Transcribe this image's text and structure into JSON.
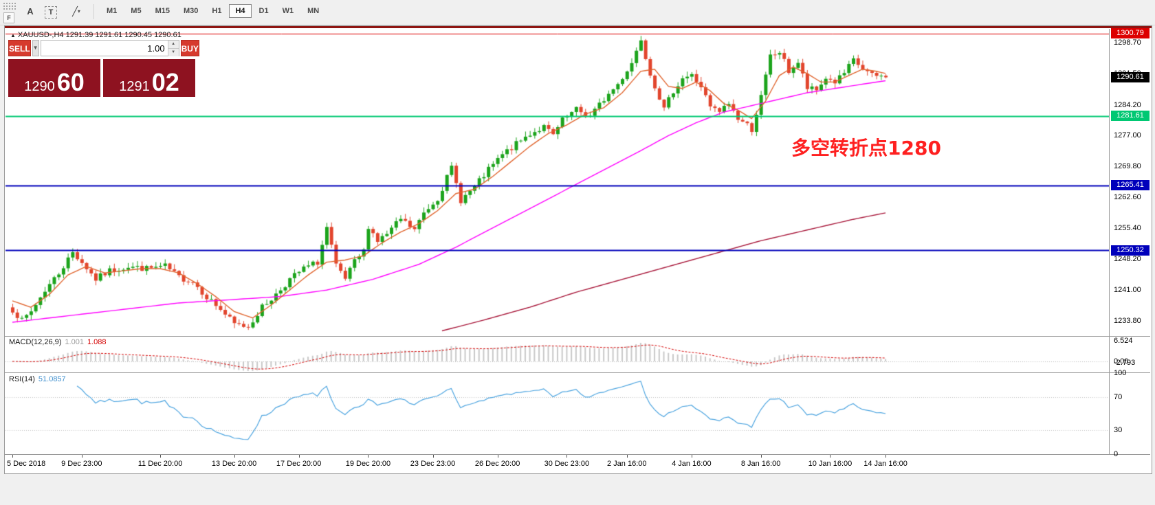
{
  "toolbar": {
    "f_label": "F",
    "icon_a": "A",
    "icon_t": "T",
    "icon_line": "╱",
    "icon_caret": "▾",
    "timeframes": [
      "M1",
      "M5",
      "M15",
      "M30",
      "H1",
      "H4",
      "D1",
      "W1",
      "MN"
    ],
    "active_timeframe": "H4"
  },
  "symbol_bar": {
    "arrow": "▲",
    "symbol": "XAUUSD-,H4",
    "ohlc": "1291.39 1291.61 1290.45 1290.61"
  },
  "trade_panel": {
    "sell_label": "SELL",
    "buy_label": "BUY",
    "volume": "1.00",
    "dropdown_icon": "▼",
    "spin_up": "▲",
    "spin_down": "▼",
    "sell_price_big": {
      "base": "1290",
      "pips": "60"
    },
    "buy_price_big": {
      "base": "1291",
      "pips": "02"
    }
  },
  "annotation": {
    "text": "多空转折点1280",
    "color": "#fe2020"
  },
  "indicators": {
    "macd": {
      "label": "MACD(12,26,9)",
      "value1": "1.001",
      "value2": "1.088",
      "axis": [
        "6.524",
        "0.00",
        "-2.793"
      ]
    },
    "rsi": {
      "label": "RSI(14)",
      "value": "51.0857",
      "axis": [
        "100",
        "70",
        "30",
        "0"
      ]
    }
  },
  "price_axis": {
    "ticks": [
      "1298.70",
      "1291.50",
      "1284.20",
      "1277.00",
      "1269.80",
      "1262.60",
      "1255.40",
      "1248.20",
      "1241.00",
      "1233.80"
    ],
    "badges": [
      {
        "text": "1300.79",
        "bg": "#dd0000",
        "price": 1300.79
      },
      {
        "text": "1290.61",
        "bg": "#000000",
        "price": 1290.61
      },
      {
        "text": "1281.61",
        "bg": "#00c873",
        "price": 1281.61
      },
      {
        "text": "1265.41",
        "bg": "#0000bb",
        "price": 1265.41
      },
      {
        "text": "1250.32",
        "bg": "#0000bb",
        "price": 1250.32
      }
    ]
  },
  "chart_data": {
    "type": "candlestick",
    "symbol": "XAUUSD-",
    "timeframe": "H4",
    "title": "XAUUSD-,H4 1291.39 1291.61 1290.45 1290.61",
    "current_price": 1290.61,
    "y_range": [
      1230.3,
      1301.9
    ],
    "candle_count": 190,
    "candle_up_color": "#1ca41c",
    "candle_down_color": "#e2452d",
    "close_path": [
      [
        0,
        1236.5
      ],
      [
        2,
        1233.8
      ],
      [
        4,
        1236
      ],
      [
        7,
        1241
      ],
      [
        10,
        1245
      ],
      [
        13,
        1249.8
      ],
      [
        15,
        1247.5
      ],
      [
        18,
        1243.5
      ],
      [
        21,
        1245.5
      ],
      [
        25,
        1246.5
      ],
      [
        29,
        1246
      ],
      [
        33,
        1246.5
      ],
      [
        36,
        1244
      ],
      [
        39,
        1243
      ],
      [
        42,
        1239.5
      ],
      [
        45,
        1236.5
      ],
      [
        48,
        1233
      ],
      [
        51,
        1232.5
      ],
      [
        54,
        1237
      ],
      [
        57,
        1240
      ],
      [
        60,
        1243.5
      ],
      [
        63,
        1246
      ],
      [
        66,
        1247.5
      ],
      [
        68,
        1255.5
      ],
      [
        70,
        1246.5
      ],
      [
        72,
        1243.5
      ],
      [
        74,
        1247.5
      ],
      [
        76,
        1250
      ],
      [
        77,
        1256
      ],
      [
        79,
        1252.5
      ],
      [
        81,
        1254
      ],
      [
        84,
        1257.5
      ],
      [
        87,
        1255
      ],
      [
        89,
        1259
      ],
      [
        92,
        1262.5
      ],
      [
        95,
        1269.5
      ],
      [
        97,
        1262
      ],
      [
        100,
        1265
      ],
      [
        103,
        1269
      ],
      [
        106,
        1272.5
      ],
      [
        109,
        1275
      ],
      [
        112,
        1277.5
      ],
      [
        115,
        1279
      ],
      [
        117,
        1277
      ],
      [
        119,
        1280.5
      ],
      [
        122,
        1283
      ],
      [
        125,
        1281.5
      ],
      [
        128,
        1285.5
      ],
      [
        131,
        1289
      ],
      [
        134,
        1294
      ],
      [
        136,
        1299.7
      ],
      [
        138,
        1291.5
      ],
      [
        140,
        1286
      ],
      [
        141,
        1283
      ],
      [
        143,
        1287.5
      ],
      [
        145,
        1290.5
      ],
      [
        147,
        1291
      ],
      [
        149,
        1288.5
      ],
      [
        151,
        1283.5
      ],
      [
        153,
        1282.5
      ],
      [
        155,
        1284.5
      ],
      [
        157,
        1281
      ],
      [
        159,
        1279.5
      ],
      [
        160,
        1278.5
      ],
      [
        162,
        1286
      ],
      [
        164,
        1295.5
      ],
      [
        166,
        1296.5
      ],
      [
        168,
        1292
      ],
      [
        170,
        1294
      ],
      [
        172,
        1288
      ],
      [
        174,
        1287.5
      ],
      [
        176,
        1290.5
      ],
      [
        178,
        1289.5
      ],
      [
        180,
        1291.5
      ],
      [
        182,
        1294.5
      ],
      [
        184,
        1292.5
      ],
      [
        186,
        1291
      ],
      [
        189,
        1290.61
      ]
    ],
    "ma_colors": {
      "fast": "#e0642d",
      "mid": "#ff00ff",
      "slow": "#a8173a"
    },
    "ma_fast_orange": [
      [
        0,
        1238.5
      ],
      [
        4,
        1237
      ],
      [
        8,
        1240
      ],
      [
        12,
        1244.5
      ],
      [
        16,
        1246.5
      ],
      [
        20,
        1245
      ],
      [
        24,
        1245.5
      ],
      [
        28,
        1246
      ],
      [
        32,
        1246
      ],
      [
        36,
        1245
      ],
      [
        40,
        1242.5
      ],
      [
        44,
        1239.5
      ],
      [
        48,
        1236
      ],
      [
        52,
        1234.5
      ],
      [
        56,
        1237.5
      ],
      [
        60,
        1241
      ],
      [
        64,
        1244.5
      ],
      [
        68,
        1247.5
      ],
      [
        72,
        1248
      ],
      [
        76,
        1249
      ],
      [
        80,
        1252
      ],
      [
        84,
        1254.5
      ],
      [
        88,
        1256.5
      ],
      [
        92,
        1259.5
      ],
      [
        96,
        1263.5
      ],
      [
        100,
        1264.5
      ],
      [
        104,
        1267.5
      ],
      [
        108,
        1271
      ],
      [
        112,
        1274.5
      ],
      [
        116,
        1277.5
      ],
      [
        120,
        1279.5
      ],
      [
        124,
        1282
      ],
      [
        128,
        1283.5
      ],
      [
        132,
        1287
      ],
      [
        136,
        1292
      ],
      [
        139,
        1292.5
      ],
      [
        142,
        1288.5
      ],
      [
        145,
        1288
      ],
      [
        148,
        1289.5
      ],
      [
        151,
        1287.5
      ],
      [
        154,
        1284.5
      ],
      [
        157,
        1283
      ],
      [
        160,
        1281
      ],
      [
        163,
        1285
      ],
      [
        166,
        1291
      ],
      [
        169,
        1293
      ],
      [
        172,
        1291.5
      ],
      [
        175,
        1289.5
      ],
      [
        178,
        1289.5
      ],
      [
        181,
        1291
      ],
      [
        184,
        1292.5
      ],
      [
        187,
        1292
      ],
      [
        189,
        1291.5
      ]
    ],
    "ma_mid_magenta": [
      [
        0,
        1233.5
      ],
      [
        12,
        1235
      ],
      [
        24,
        1236.5
      ],
      [
        36,
        1238
      ],
      [
        48,
        1238.8
      ],
      [
        58,
        1239.5
      ],
      [
        68,
        1241
      ],
      [
        78,
        1243.5
      ],
      [
        88,
        1247
      ],
      [
        96,
        1251
      ],
      [
        104,
        1255.5
      ],
      [
        112,
        1260
      ],
      [
        120,
        1264.5
      ],
      [
        128,
        1269
      ],
      [
        136,
        1273.5
      ],
      [
        142,
        1277
      ],
      [
        148,
        1280
      ],
      [
        154,
        1282.5
      ],
      [
        160,
        1284
      ],
      [
        166,
        1285.5
      ],
      [
        172,
        1287
      ],
      [
        178,
        1288
      ],
      [
        184,
        1289
      ],
      [
        189,
        1289.8
      ]
    ],
    "ma_slow_darkred": [
      [
        93,
        1231.5
      ],
      [
        102,
        1234
      ],
      [
        112,
        1237
      ],
      [
        122,
        1240.5
      ],
      [
        132,
        1243.5
      ],
      [
        142,
        1246.5
      ],
      [
        152,
        1249.5
      ],
      [
        162,
        1252.5
      ],
      [
        172,
        1255
      ],
      [
        182,
        1257.5
      ],
      [
        189,
        1259
      ]
    ],
    "hlines": [
      {
        "price": 1300.79,
        "color": "#dd0000",
        "width": 1
      },
      {
        "price": 1281.61,
        "color": "#00c873",
        "width": 2
      },
      {
        "price": 1265.41,
        "color": "#0000bb",
        "width": 2
      },
      {
        "price": 1250.32,
        "color": "#0000bb",
        "width": 2
      }
    ],
    "macd": {
      "params": [
        12,
        26,
        9
      ],
      "hist_color": "#c8c8c8",
      "signal_color": "#d40000",
      "range": [
        -2.793,
        6.524
      ]
    },
    "rsi": {
      "period": 14,
      "color": "#4aa3df",
      "levels": [
        70,
        30
      ],
      "range": [
        0,
        100
      ]
    },
    "time_labels": [
      [
        0,
        "5 Dec 2018"
      ],
      [
        15,
        "9 Dec 23:00"
      ],
      [
        32,
        "11 Dec 20:00"
      ],
      [
        48,
        "13 Dec 20:00"
      ],
      [
        62,
        "17 Dec 20:00"
      ],
      [
        77,
        "19 Dec 20:00"
      ],
      [
        91,
        "23 Dec 23:00"
      ],
      [
        105,
        "26 Dec 20:00"
      ],
      [
        120,
        "30 Dec 23:00"
      ],
      [
        133,
        "2 Jan 16:00"
      ],
      [
        147,
        "4 Jan 16:00"
      ],
      [
        162,
        "8 Jan 16:00"
      ],
      [
        177,
        "10 Jan 16:00"
      ],
      [
        189,
        "14 Jan 16:00"
      ]
    ]
  }
}
